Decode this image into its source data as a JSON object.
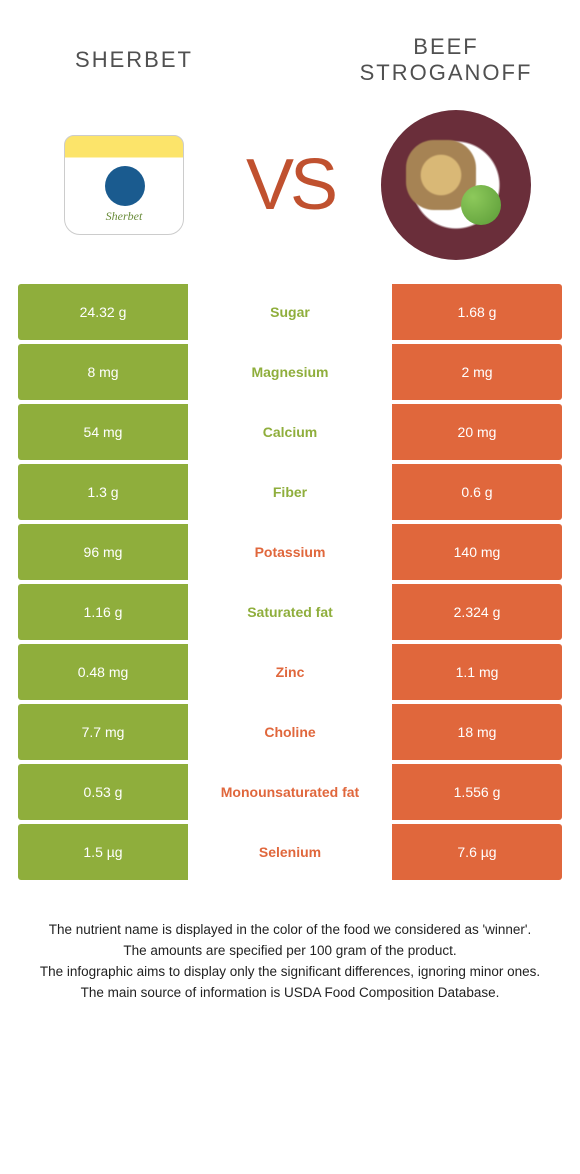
{
  "colors": {
    "left": "#8fae3c",
    "right": "#e0673c",
    "vs": "#c0512f",
    "title": "#505050"
  },
  "foods": {
    "left": {
      "title": "Sherbet"
    },
    "right": {
      "title": "Beef Stroganoff"
    }
  },
  "vs_label": "VS",
  "rows": [
    {
      "left": "24.32 g",
      "label": "Sugar",
      "winner": "left",
      "right": "1.68 g"
    },
    {
      "left": "8 mg",
      "label": "Magnesium",
      "winner": "left",
      "right": "2 mg"
    },
    {
      "left": "54 mg",
      "label": "Calcium",
      "winner": "left",
      "right": "20 mg"
    },
    {
      "left": "1.3 g",
      "label": "Fiber",
      "winner": "left",
      "right": "0.6 g"
    },
    {
      "left": "96 mg",
      "label": "Potassium",
      "winner": "right",
      "right": "140 mg"
    },
    {
      "left": "1.16 g",
      "label": "Saturated fat",
      "winner": "left",
      "right": "2.324 g"
    },
    {
      "left": "0.48 mg",
      "label": "Zinc",
      "winner": "right",
      "right": "1.1 mg"
    },
    {
      "left": "7.7 mg",
      "label": "Choline",
      "winner": "right",
      "right": "18 mg"
    },
    {
      "left": "0.53 g",
      "label": "Monounsaturated fat",
      "winner": "right",
      "right": "1.556 g"
    },
    {
      "left": "1.5 µg",
      "label": "Selenium",
      "winner": "right",
      "right": "7.6 µg"
    }
  ],
  "notes": [
    "The nutrient name is displayed in the color of the food we considered as 'winner'.",
    "The amounts are specified per 100 gram of the product.",
    "The infographic aims to display only the significant differences, ignoring minor ones.",
    "The main source of information is USDA Food Composition Database."
  ]
}
